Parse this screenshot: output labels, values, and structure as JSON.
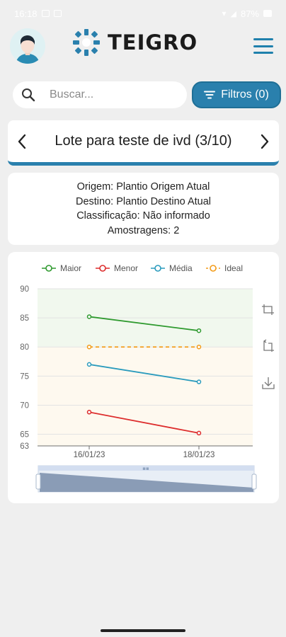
{
  "status_bar": {
    "time": "16:18",
    "battery": "87%"
  },
  "header": {
    "logo_text": "TEIGRO"
  },
  "search": {
    "placeholder": "Buscar..."
  },
  "filter": {
    "label": "Filtros (0)"
  },
  "lote": {
    "title": "Lote para teste de ivd (3/10)"
  },
  "info": {
    "origem": "Origem: Plantio Origem Atual",
    "destino": "Destino: Plantio Destino Atual",
    "classificacao": "Classificação: Não informado",
    "amostragens": "Amostragens: 2"
  },
  "icons": {
    "menu": "hamburger-menu-icon",
    "search": "search-icon",
    "filter": "filter-icon",
    "prev": "chevron-left-icon",
    "next": "chevron-right-icon",
    "zoom": "zoom-select-icon",
    "zoom_reset": "zoom-reset-icon",
    "download": "download-icon"
  },
  "colors": {
    "accent": "#2a80ad",
    "maior": "#2f9a2f",
    "menor": "#dd2c2c",
    "media": "#2a9bbd",
    "ideal": "#f39c1a",
    "band_upper": "#f1f8ee",
    "band_lower": "#fef9ef"
  },
  "chart_data": {
    "type": "line",
    "categories": [
      "16/01/23",
      "18/01/23"
    ],
    "series": [
      {
        "name": "Maior",
        "values": [
          85.2,
          82.8
        ],
        "color": "#2f9a2f",
        "dashed": false
      },
      {
        "name": "Menor",
        "values": [
          68.8,
          65.2
        ],
        "color": "#dd2c2c",
        "dashed": false
      },
      {
        "name": "Média",
        "values": [
          77.0,
          74.0
        ],
        "color": "#2a9bbd",
        "dashed": false
      },
      {
        "name": "Ideal",
        "values": [
          80.0,
          80.0
        ],
        "color": "#f39c1a",
        "dashed": true
      }
    ],
    "y_ticks": [
      63,
      65,
      70,
      75,
      80,
      85,
      90
    ],
    "ylim": [
      63,
      90
    ],
    "bands": [
      {
        "from": 80,
        "to": 90,
        "color": "#f1f8ee"
      },
      {
        "from": 63,
        "to": 80,
        "color": "#fef9ef"
      }
    ],
    "grid": true,
    "legend_position": "top",
    "data_zoom": true
  }
}
